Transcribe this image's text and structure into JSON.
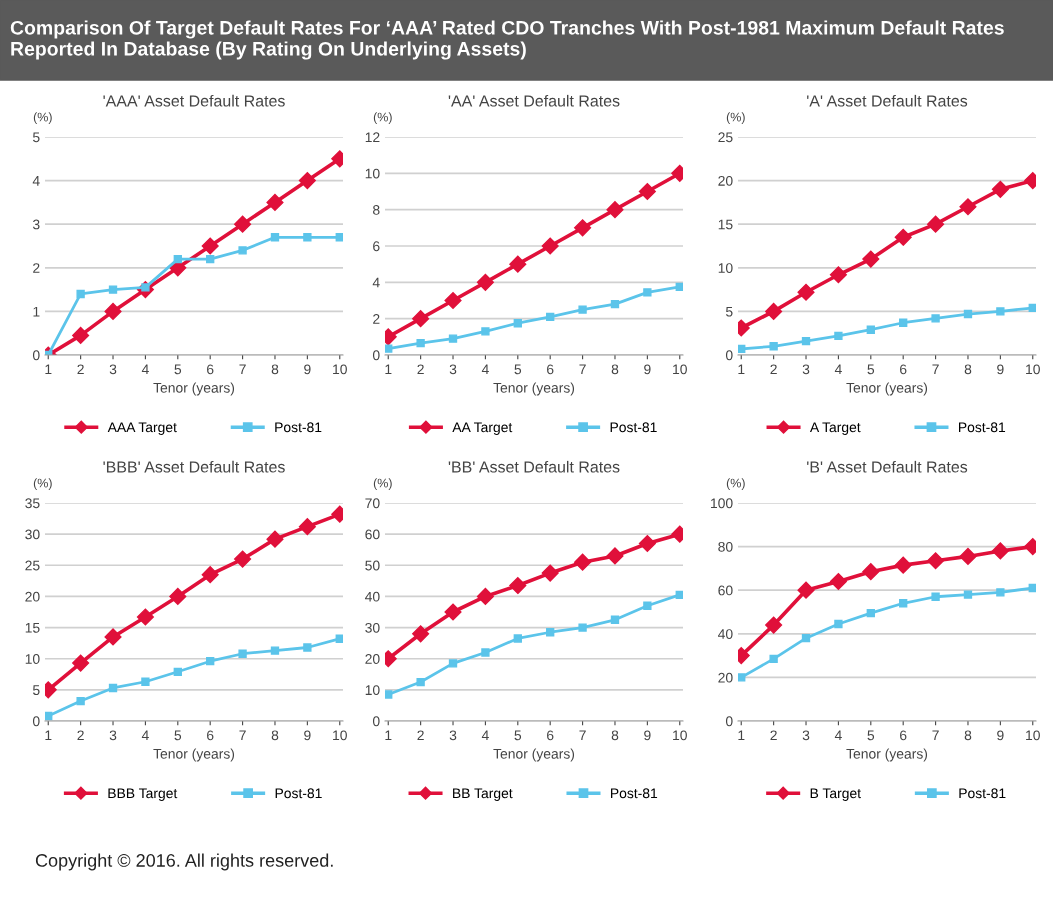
{
  "chart_data": [
    {
      "type": "line",
      "title": "'AAA' Asset Default Rates",
      "ylabel": "(%)",
      "xlabel": "Tenor (years)",
      "categories": [
        "1",
        "2",
        "3",
        "4",
        "5",
        "6",
        "7",
        "8",
        "9",
        "10"
      ],
      "ylim": [
        0,
        5
      ],
      "yticks": [
        0,
        1,
        2,
        3,
        4,
        5
      ],
      "grid": "y",
      "legend": "bottom",
      "annotations": [
        "Comparison Of Target Default Rates For ‘AAA’ Rated CDO Tranches With Post-1981 Maximum Default Rates Reported In Database (By Rating On Underlying Assets)"
      ],
      "series": [
        {
          "name": "AAA Target",
          "color": "#e0103a",
          "marker": "diamond",
          "values": [
            0,
            0.45,
            1,
            1.5,
            2,
            2.5,
            3,
            3.5,
            4,
            4.5
          ]
        },
        {
          "name": "Post-81",
          "color": "#5bc4ea",
          "marker": "square",
          "values": [
            0,
            1.4,
            1.5,
            1.55,
            2.2,
            2.2,
            2.4,
            2.7,
            2.7,
            2.7
          ]
        }
      ]
    },
    {
      "type": "line",
      "title": "'AA' Asset Default Rates",
      "ylabel": "(%)",
      "xlabel": "Tenor (years)",
      "categories": [
        "1",
        "2",
        "3",
        "4",
        "5",
        "6",
        "7",
        "8",
        "9",
        "10"
      ],
      "ylim": [
        0,
        12
      ],
      "yticks": [
        0,
        2,
        4,
        6,
        8,
        10,
        12
      ],
      "grid": "y",
      "legend": "bottom",
      "series": [
        {
          "name": "AA Target",
          "color": "#e0103a",
          "marker": "diamond",
          "values": [
            1,
            2,
            3,
            4,
            5,
            6,
            7,
            8,
            9,
            10
          ]
        },
        {
          "name": "Post-81",
          "color": "#5bc4ea",
          "marker": "square",
          "values": [
            0.35,
            0.65,
            0.9,
            1.3,
            1.75,
            2.1,
            2.5,
            2.8,
            3.45,
            3.75
          ]
        }
      ]
    },
    {
      "type": "line",
      "title": "'A' Asset Default Rates",
      "ylabel": "(%)",
      "xlabel": "Tenor (years)",
      "categories": [
        "1",
        "2",
        "3",
        "4",
        "5",
        "6",
        "7",
        "8",
        "9",
        "10"
      ],
      "ylim": [
        0,
        25
      ],
      "yticks": [
        0,
        5,
        10,
        15,
        20,
        25
      ],
      "grid": "y",
      "legend": "bottom",
      "series": [
        {
          "name": "A Target",
          "color": "#e0103a",
          "marker": "diamond",
          "values": [
            3.1,
            5,
            7.2,
            9.2,
            11,
            13.5,
            15,
            17,
            19,
            20
          ]
        },
        {
          "name": "Post-81",
          "color": "#5bc4ea",
          "marker": "square",
          "values": [
            0.7,
            1,
            1.6,
            2.2,
            2.9,
            3.7,
            4.2,
            4.7,
            5,
            5.4
          ]
        }
      ]
    },
    {
      "type": "line",
      "title": "'BBB' Asset Default Rates",
      "ylabel": "(%)",
      "xlabel": "Tenor (years)",
      "categories": [
        "1",
        "2",
        "3",
        "4",
        "5",
        "6",
        "7",
        "8",
        "9",
        "10"
      ],
      "ylim": [
        0,
        35
      ],
      "yticks": [
        0,
        5,
        10,
        15,
        20,
        25,
        30,
        35
      ],
      "grid": "y",
      "legend": "bottom",
      "series": [
        {
          "name": "BBB Target",
          "color": "#e0103a",
          "marker": "diamond",
          "values": [
            5,
            9.3,
            13.5,
            16.7,
            20,
            23.5,
            26,
            29.2,
            31.2,
            33.2
          ]
        },
        {
          "name": "Post-81",
          "color": "#5bc4ea",
          "marker": "square",
          "values": [
            0.8,
            3.2,
            5.3,
            6.3,
            7.9,
            9.6,
            10.8,
            11.3,
            11.8,
            13.2
          ]
        }
      ]
    },
    {
      "type": "line",
      "title": "'BB' Asset Default Rates",
      "ylabel": "(%)",
      "xlabel": "Tenor (years)",
      "categories": [
        "1",
        "2",
        "3",
        "4",
        "5",
        "6",
        "7",
        "8",
        "9",
        "10"
      ],
      "ylim": [
        0,
        70
      ],
      "yticks": [
        0,
        10,
        20,
        30,
        40,
        50,
        60,
        70
      ],
      "grid": "y",
      "legend": "bottom",
      "series": [
        {
          "name": "BB Target",
          "color": "#e0103a",
          "marker": "diamond",
          "values": [
            20,
            28,
            35,
            40,
            43.5,
            47.5,
            51,
            53,
            57,
            60
          ]
        },
        {
          "name": "Post-81",
          "color": "#5bc4ea",
          "marker": "square",
          "values": [
            8.5,
            12.5,
            18.5,
            22,
            26.5,
            28.5,
            30,
            32.5,
            37,
            40.5
          ]
        }
      ]
    },
    {
      "type": "line",
      "title": "'B' Asset Default Rates",
      "ylabel": "(%)",
      "xlabel": "Tenor (years)",
      "categories": [
        "1",
        "2",
        "3",
        "4",
        "5",
        "6",
        "7",
        "8",
        "9",
        "10"
      ],
      "ylim": [
        0,
        100
      ],
      "yticks": [
        0,
        20,
        40,
        60,
        80,
        100
      ],
      "grid": "y",
      "legend": "bottom",
      "annotations": [
        "Copyright © 2016. All rights reserved."
      ],
      "series": [
        {
          "name": "B Target",
          "color": "#e0103a",
          "marker": "diamond",
          "values": [
            30,
            44,
            60,
            64,
            68.5,
            71.5,
            73.5,
            75.5,
            78,
            80
          ]
        },
        {
          "name": "Post-81",
          "color": "#5bc4ea",
          "marker": "square",
          "values": [
            20,
            28.5,
            38,
            44.5,
            49.5,
            54,
            57,
            58,
            59,
            61
          ]
        }
      ]
    }
  ]
}
